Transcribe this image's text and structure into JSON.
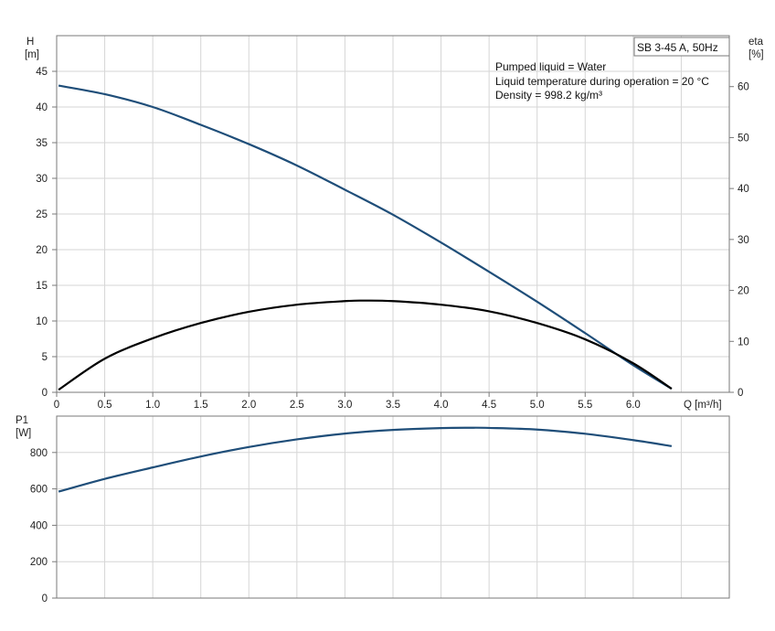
{
  "chart_data": [
    {
      "type": "line",
      "panel": "main",
      "legend_box": "SB 3-45 A, 50Hz",
      "info": [
        "Pumped liquid = Water",
        "Liquid temperature during operation = 20 °C",
        "Density = 998.2 kg/m³"
      ],
      "left_axis": {
        "label": "H",
        "unit": "[m]",
        "ylim": [
          0,
          50
        ],
        "ticks": [
          0,
          5,
          10,
          15,
          20,
          25,
          30,
          35,
          40,
          45
        ]
      },
      "right_axis": {
        "label": "eta",
        "unit": "[%]",
        "ylim": [
          0,
          70
        ],
        "ticks": [
          0,
          10,
          20,
          30,
          40,
          50,
          60
        ]
      },
      "x_axis": {
        "label": "Q [m³/h]",
        "xlim": [
          0,
          7
        ],
        "ticks": [
          "0",
          "0.5",
          "1.0",
          "1.5",
          "2.0",
          "2.5",
          "3.0",
          "3.5",
          "4.0",
          "4.5",
          "5.0",
          "5.5",
          "6.0"
        ]
      },
      "grid": true,
      "series": [
        {
          "name": "H",
          "axis": "left",
          "color": "#1f4e79",
          "x": [
            0.02,
            0.5,
            1.0,
            1.5,
            2.0,
            2.5,
            3.0,
            3.5,
            4.0,
            4.5,
            5.0,
            5.5,
            6.0,
            6.4
          ],
          "y": [
            43.0,
            41.8,
            40.0,
            37.5,
            34.8,
            31.8,
            28.4,
            24.9,
            21.0,
            16.9,
            12.7,
            8.3,
            3.8,
            0.5
          ]
        },
        {
          "name": "eta",
          "axis": "right",
          "color": "#000000",
          "x": [
            0.02,
            0.5,
            1.0,
            1.5,
            2.0,
            2.5,
            3.0,
            3.2,
            3.5,
            4.0,
            4.5,
            5.0,
            5.5,
            6.0,
            6.4
          ],
          "y": [
            0.5,
            6.6,
            10.6,
            13.6,
            15.8,
            17.2,
            17.9,
            18.0,
            17.9,
            17.2,
            15.9,
            13.6,
            10.4,
            5.7,
            0.7
          ]
        }
      ]
    },
    {
      "type": "line",
      "panel": "power",
      "left_axis": {
        "label": "P1",
        "unit": "[W]",
        "ylim": [
          0,
          1000
        ],
        "ticks": [
          0,
          200,
          400,
          600,
          800
        ]
      },
      "x_axis": {
        "xlim": [
          0,
          7
        ]
      },
      "grid": true,
      "series": [
        {
          "name": "P1",
          "color": "#1f4e79",
          "x": [
            0.02,
            0.5,
            1.0,
            1.5,
            2.0,
            2.5,
            3.0,
            3.5,
            4.0,
            4.3,
            4.5,
            5.0,
            5.5,
            6.0,
            6.4
          ],
          "y": [
            585,
            655,
            718,
            778,
            830,
            872,
            904,
            924,
            934,
            936,
            935,
            926,
            903,
            868,
            835
          ]
        }
      ]
    }
  ]
}
